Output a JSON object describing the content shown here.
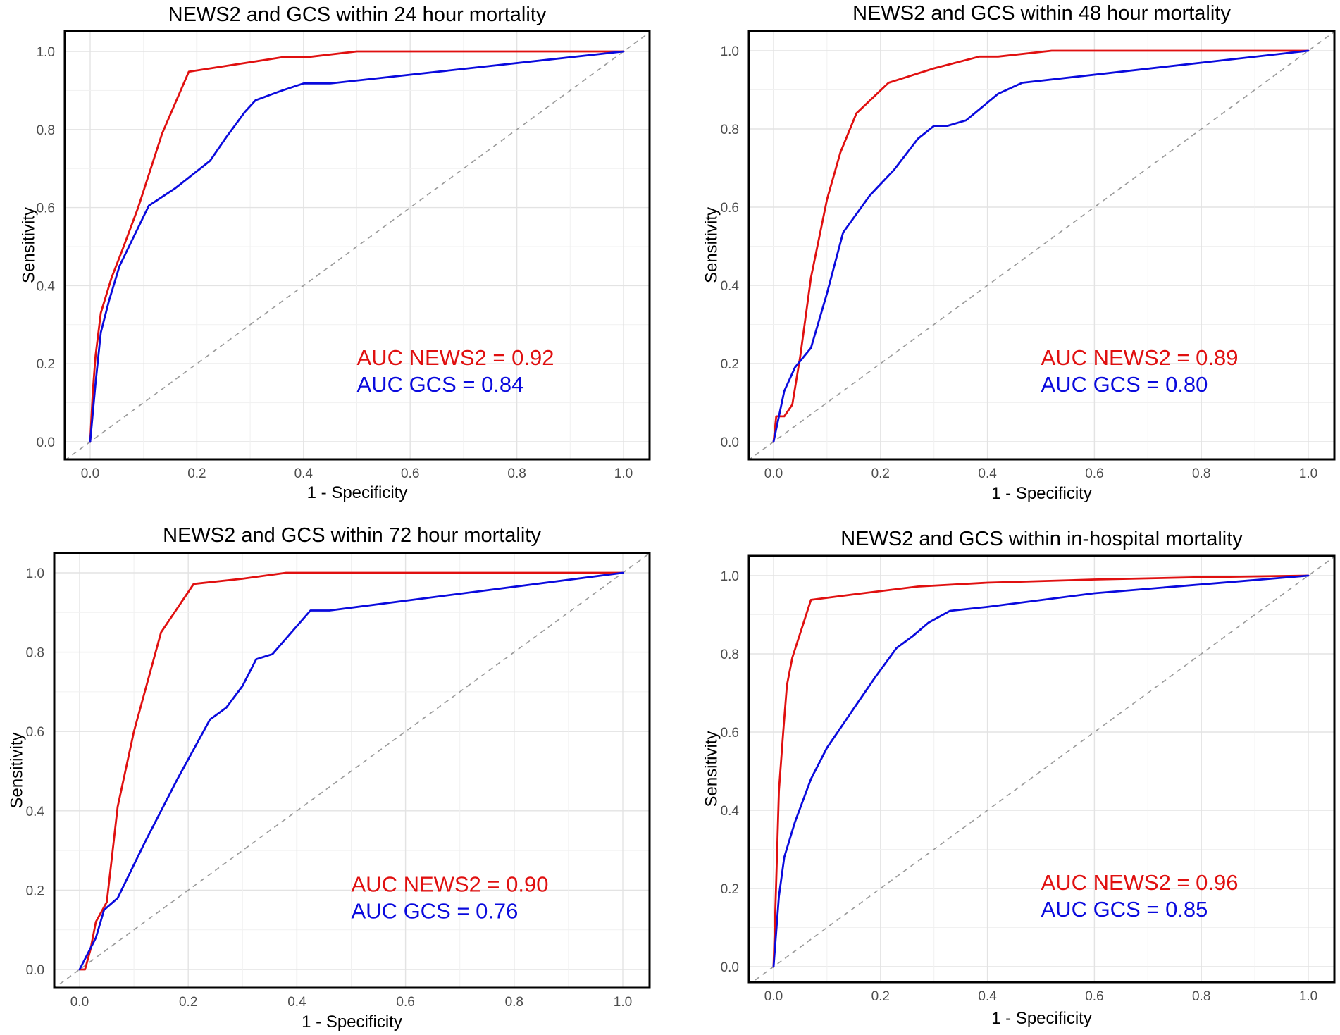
{
  "chart_data": [
    {
      "type": "line",
      "title": "NEWS2 and GCS within 24 hour mortality",
      "xlabel": "1 - Specificity",
      "ylabel": "Sensitivity",
      "xlim": [
        0,
        1
      ],
      "ylim": [
        0,
        1
      ],
      "xticks": [
        "0.0",
        "0.2",
        "0.4",
        "0.6",
        "0.8",
        "1.0"
      ],
      "yticks": [
        "0.0",
        "0.2",
        "0.4",
        "0.6",
        "0.8",
        "1.0"
      ],
      "grid": true,
      "reference_line": "diagonal",
      "series": [
        {
          "name": "NEWS2",
          "color": "#e01010",
          "x": [
            0,
            0.005,
            0.01,
            0.02,
            0.04,
            0.06,
            0.09,
            0.135,
            0.185,
            0.25,
            0.36,
            0.405,
            0.5,
            1.0
          ],
          "y": [
            0,
            0.13,
            0.22,
            0.33,
            0.42,
            0.49,
            0.6,
            0.79,
            0.948,
            0.962,
            0.985,
            0.985,
            1.0,
            1.0
          ]
        },
        {
          "name": "GCS",
          "color": "#0a0add",
          "x": [
            0,
            0.01,
            0.02,
            0.035,
            0.055,
            0.11,
            0.16,
            0.225,
            0.255,
            0.29,
            0.31,
            0.36,
            0.4,
            0.45,
            1.0
          ],
          "y": [
            0,
            0.15,
            0.28,
            0.36,
            0.45,
            0.605,
            0.65,
            0.72,
            0.78,
            0.845,
            0.875,
            0.9,
            0.918,
            0.918,
            1.0
          ]
        }
      ],
      "annotations": [
        "AUC NEWS2 = 0.92",
        "AUC GCS = 0.84"
      ]
    },
    {
      "type": "line",
      "title": "NEWS2 and GCS within 48 hour mortality",
      "xlabel": "1 - Specificity",
      "ylabel": "Sensitivity",
      "xlim": [
        0,
        1
      ],
      "ylim": [
        0,
        1
      ],
      "xticks": [
        "0.0",
        "0.2",
        "0.4",
        "0.6",
        "0.8",
        "1.0"
      ],
      "yticks": [
        "0.0",
        "0.2",
        "0.4",
        "0.6",
        "0.8",
        "1.0"
      ],
      "grid": true,
      "reference_line": "diagonal",
      "series": [
        {
          "name": "NEWS2",
          "color": "#e01010",
          "x": [
            0,
            0.005,
            0.02,
            0.035,
            0.05,
            0.07,
            0.1,
            0.125,
            0.155,
            0.215,
            0.3,
            0.385,
            0.42,
            0.52,
            1.0
          ],
          "y": [
            0,
            0.065,
            0.065,
            0.095,
            0.22,
            0.42,
            0.62,
            0.74,
            0.84,
            0.918,
            0.955,
            0.985,
            0.985,
            1.0,
            1.0
          ]
        },
        {
          "name": "GCS",
          "color": "#0a0add",
          "x": [
            0,
            0.02,
            0.04,
            0.07,
            0.1,
            0.13,
            0.18,
            0.225,
            0.27,
            0.3,
            0.325,
            0.36,
            0.42,
            0.465,
            1.0
          ],
          "y": [
            0,
            0.13,
            0.19,
            0.24,
            0.38,
            0.535,
            0.63,
            0.695,
            0.775,
            0.808,
            0.808,
            0.822,
            0.89,
            0.918,
            1.0
          ]
        }
      ],
      "annotations": [
        "AUC NEWS2 = 0.89",
        "AUC GCS = 0.80"
      ]
    },
    {
      "type": "line",
      "title": "NEWS2 and GCS within 72 hour mortality",
      "xlabel": "1 - Specificity",
      "ylabel": "Sensitivity",
      "xlim": [
        0,
        1
      ],
      "ylim": [
        0,
        1
      ],
      "xticks": [
        "0.0",
        "0.2",
        "0.4",
        "0.6",
        "0.8",
        "1.0"
      ],
      "yticks": [
        "0.0",
        "0.2",
        "0.4",
        "0.6",
        "0.8",
        "1.0"
      ],
      "grid": true,
      "reference_line": "diagonal",
      "series": [
        {
          "name": "NEWS2",
          "color": "#e01010",
          "x": [
            0,
            0.01,
            0.02,
            0.03,
            0.05,
            0.07,
            0.1,
            0.15,
            0.21,
            0.3,
            0.38,
            1.0
          ],
          "y": [
            0,
            0,
            0.05,
            0.12,
            0.17,
            0.41,
            0.6,
            0.85,
            0.972,
            0.985,
            1.0,
            1.0
          ]
        },
        {
          "name": "GCS",
          "color": "#0a0add",
          "x": [
            0,
            0.03,
            0.045,
            0.07,
            0.12,
            0.18,
            0.24,
            0.27,
            0.3,
            0.325,
            0.355,
            0.425,
            0.46,
            1.0
          ],
          "y": [
            0,
            0.08,
            0.15,
            0.18,
            0.32,
            0.48,
            0.63,
            0.66,
            0.715,
            0.782,
            0.795,
            0.905,
            0.905,
            1.0
          ]
        }
      ],
      "annotations": [
        "AUC NEWS2 = 0.90",
        "AUC GCS = 0.76"
      ]
    },
    {
      "type": "line",
      "title": "NEWS2 and GCS within in-hospital mortality",
      "xlabel": "1 - Specificity",
      "ylabel": "Sensitivity",
      "xlim": [
        0,
        1
      ],
      "ylim": [
        0,
        1
      ],
      "xticks": [
        "0.0",
        "0.2",
        "0.4",
        "0.6",
        "0.8",
        "1.0"
      ],
      "yticks": [
        "0.0",
        "0.2",
        "0.4",
        "0.6",
        "0.8",
        "1.0"
      ],
      "grid": true,
      "reference_line": "diagonal",
      "series": [
        {
          "name": "NEWS2",
          "color": "#e01010",
          "x": [
            0,
            0.005,
            0.01,
            0.018,
            0.025,
            0.035,
            0.07,
            0.15,
            0.27,
            0.4,
            0.6,
            0.8,
            1.0
          ],
          "y": [
            0,
            0.22,
            0.45,
            0.6,
            0.72,
            0.79,
            0.938,
            0.952,
            0.972,
            0.982,
            0.99,
            0.996,
            1.0
          ]
        },
        {
          "name": "GCS",
          "color": "#0a0add",
          "x": [
            0,
            0.01,
            0.02,
            0.04,
            0.07,
            0.1,
            0.15,
            0.19,
            0.23,
            0.26,
            0.29,
            0.33,
            0.4,
            0.6,
            1.0
          ],
          "y": [
            0,
            0.18,
            0.28,
            0.37,
            0.48,
            0.56,
            0.66,
            0.74,
            0.815,
            0.845,
            0.88,
            0.91,
            0.92,
            0.955,
            1.0
          ]
        }
      ],
      "annotations": [
        "AUC NEWS2 = 0.96",
        "AUC GCS = 0.85"
      ]
    }
  ]
}
